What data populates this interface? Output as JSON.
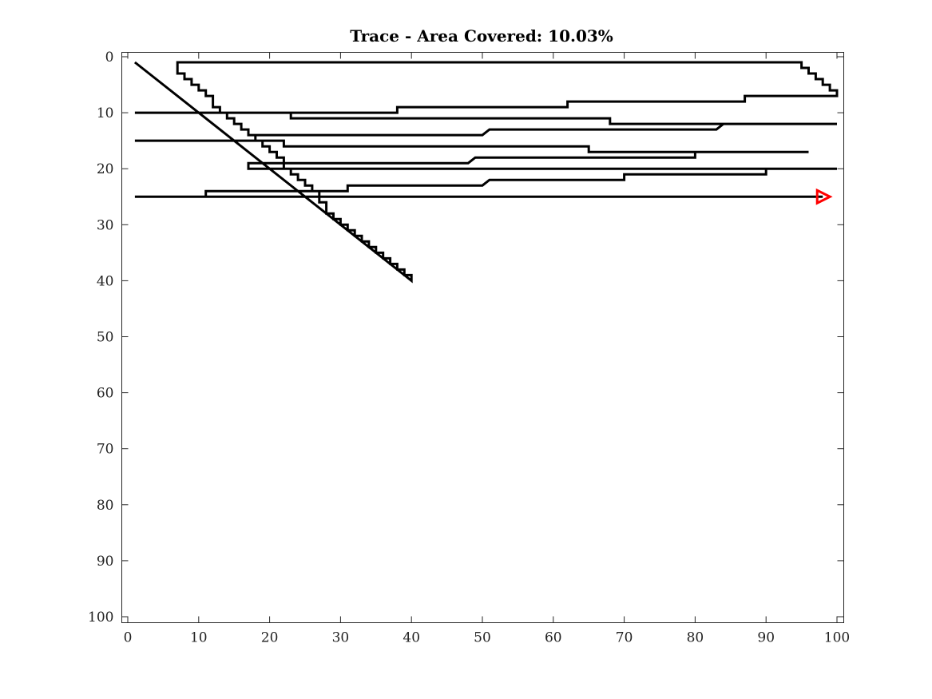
{
  "chart_data": {
    "type": "line",
    "title": "Trace - Area Covered: 10.03%",
    "xlabel": "",
    "ylabel": "",
    "xlim": [
      0,
      100
    ],
    "ylim": [
      0,
      100
    ],
    "y_reversed": true,
    "grid": false,
    "x_ticks": [
      "0",
      "10",
      "20",
      "30",
      "40",
      "50",
      "60",
      "70",
      "80",
      "90",
      "100"
    ],
    "y_ticks": [
      "0",
      "10",
      "20",
      "30",
      "40",
      "50",
      "60",
      "70",
      "80",
      "90",
      "100"
    ],
    "series": [
      {
        "line_color": "#000000",
        "x": [
          1,
          40,
          40,
          39,
          39,
          38,
          38,
          37,
          37,
          36,
          36,
          35,
          35,
          34,
          34,
          33,
          33,
          32,
          32,
          31,
          31,
          30,
          30,
          29,
          29,
          28,
          28,
          27,
          27,
          26,
          26,
          25,
          25,
          24,
          24,
          23,
          23,
          22,
          22,
          21,
          21,
          20,
          20,
          19,
          19,
          18,
          18,
          17,
          17,
          16,
          16,
          15,
          15,
          14,
          14,
          13,
          13,
          12,
          12,
          11,
          11,
          10,
          10,
          9,
          9,
          8,
          8,
          7,
          7,
          95,
          95,
          96,
          96,
          97,
          97,
          98,
          98,
          99,
          99,
          100,
          100,
          87,
          87,
          62,
          62,
          38,
          38,
          1,
          1,
          23,
          23,
          68,
          68,
          100,
          100,
          84,
          83,
          51,
          50,
          18,
          18,
          1,
          1,
          22,
          22,
          65,
          65,
          96,
          96,
          80,
          80,
          49,
          48,
          17,
          17,
          100,
          100,
          90,
          90,
          70,
          70,
          51,
          50,
          31,
          31,
          11,
          11,
          1,
          1,
          98
        ],
        "y": [
          1,
          40,
          39,
          39,
          38,
          38,
          37,
          37,
          36,
          36,
          35,
          35,
          34,
          34,
          33,
          33,
          32,
          32,
          31,
          31,
          30,
          30,
          29,
          29,
          28,
          28,
          26,
          26,
          24,
          24,
          23,
          23,
          22,
          22,
          21,
          21,
          20,
          20,
          18,
          18,
          17,
          17,
          16,
          16,
          15,
          15,
          14,
          14,
          13,
          13,
          12,
          12,
          11,
          11,
          10,
          10,
          9,
          9,
          7,
          7,
          6,
          6,
          5,
          5,
          4,
          4,
          3,
          3,
          1,
          1,
          2,
          2,
          3,
          3,
          4,
          4,
          5,
          5,
          6,
          6,
          7,
          7,
          8,
          8,
          9,
          9,
          10,
          10,
          10,
          10,
          11,
          11,
          12,
          12,
          12,
          12,
          13,
          13,
          14,
          14,
          15,
          15,
          15,
          15,
          16,
          16,
          17,
          17,
          17,
          17,
          18,
          18,
          19,
          19,
          20,
          20,
          20,
          20,
          21,
          21,
          22,
          22,
          23,
          23,
          24,
          24,
          25,
          25,
          25,
          25
        ]
      }
    ],
    "end_marker": {
      "x": 98,
      "y": 25,
      "shape": "triangle-right",
      "color": "#ff0000"
    }
  }
}
